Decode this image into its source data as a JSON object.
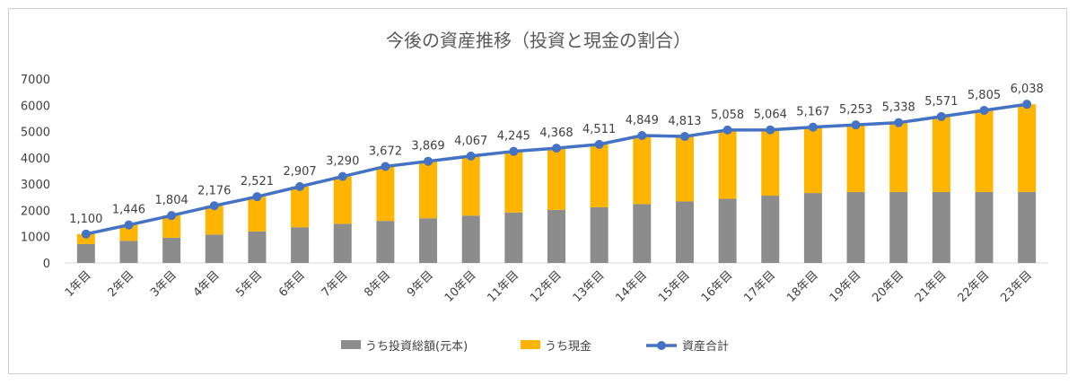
{
  "chart_data": {
    "type": "bar",
    "title": "今後の資産推移（投資と現金の割合）",
    "categories": [
      "1年目",
      "2年目",
      "3年目",
      "4年目",
      "5年目",
      "6年目",
      "7年目",
      "8年目",
      "9年目",
      "10年目",
      "11年目",
      "12年目",
      "13年目",
      "14年目",
      "15年目",
      "16年目",
      "17年目",
      "18年目",
      "19年目",
      "20年目",
      "21年目",
      "22年目",
      "23年目"
    ],
    "ylim": [
      0,
      7000
    ],
    "yticks": [
      "0",
      "1000",
      "2000",
      "3000",
      "4000",
      "5000",
      "6000",
      "7000"
    ],
    "stacked": true,
    "grid": false,
    "legend_position": "bottom",
    "series": [
      {
        "name": "うち投資総額(元本)",
        "kind": "bar",
        "color": "#8c8c8c",
        "values": [
          720,
          840,
          960,
          1080,
          1200,
          1360,
          1490,
          1600,
          1700,
          1800,
          1920,
          2020,
          2120,
          2240,
          2340,
          2440,
          2560,
          2660,
          2700,
          2700,
          2700,
          2700,
          2700
        ]
      },
      {
        "name": "うち現金",
        "kind": "bar",
        "color": "#ffb400",
        "values": [
          380,
          606,
          844,
          1096,
          1321,
          1547,
          1800,
          2072,
          2169,
          2267,
          2325,
          2348,
          2391,
          2609,
          2473,
          2618,
          2504,
          2507,
          2553,
          2638,
          2871,
          3105,
          3338
        ]
      },
      {
        "name": "資産合計",
        "kind": "line",
        "color": "#4472c4",
        "values": [
          1100,
          1446,
          1804,
          2176,
          2521,
          2907,
          3290,
          3672,
          3869,
          4067,
          4245,
          4368,
          4511,
          4849,
          4813,
          5058,
          5064,
          5167,
          5253,
          5338,
          5571,
          5805,
          6038
        ],
        "labels": [
          "1,100",
          "1,446",
          "1,804",
          "2,176",
          "2,521",
          "2,907",
          "3,290",
          "3,672",
          "3,869",
          "4,067",
          "4,245",
          "4,368",
          "4,511",
          "4,849",
          "4,813",
          "5,058",
          "5,064",
          "5,167",
          "5,253",
          "5,338",
          "5,571",
          "5,805",
          "6,038"
        ]
      }
    ]
  }
}
